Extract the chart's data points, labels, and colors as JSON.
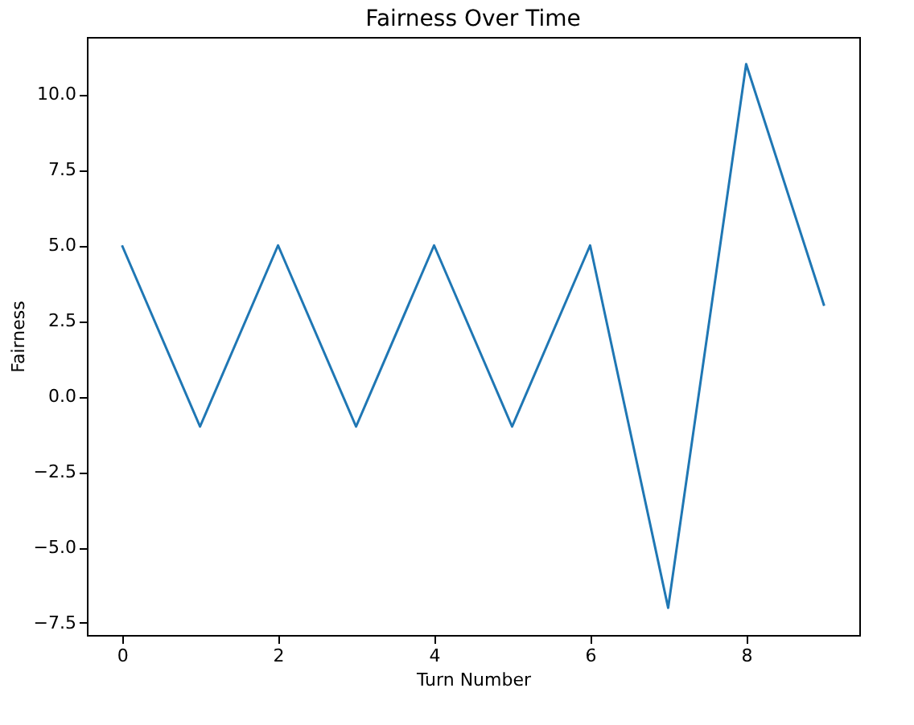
{
  "chart_data": {
    "type": "line",
    "title": "Fairness Over Time",
    "xlabel": "Turn Number",
    "ylabel": "Fairness",
    "x": [
      0,
      1,
      2,
      3,
      4,
      5,
      6,
      7,
      8,
      9
    ],
    "series": [
      {
        "color": "#1f77b4",
        "values": [
          5,
          -1,
          5,
          -1,
          5,
          -1,
          5,
          -7,
          11,
          3
        ]
      }
    ],
    "xlim": [
      -0.45,
      9.45
    ],
    "xticks": [
      0,
      2,
      4,
      6,
      8
    ],
    "ylim": [
      -7.9,
      11.9
    ],
    "yticks": [
      {
        "value": -7.5,
        "label": "−7.5"
      },
      {
        "value": -5,
        "label": "−5.0"
      },
      {
        "value": -2.5,
        "label": "−2.5"
      },
      {
        "value": 0,
        "label": "0.0"
      },
      {
        "value": 2.5,
        "label": "2.5"
      },
      {
        "value": 5,
        "label": "5.0"
      },
      {
        "value": 7.5,
        "label": "7.5"
      },
      {
        "value": 10,
        "label": "10.0"
      }
    ],
    "grid": false,
    "legend": false,
    "marker": "none",
    "line_style": "solid"
  }
}
